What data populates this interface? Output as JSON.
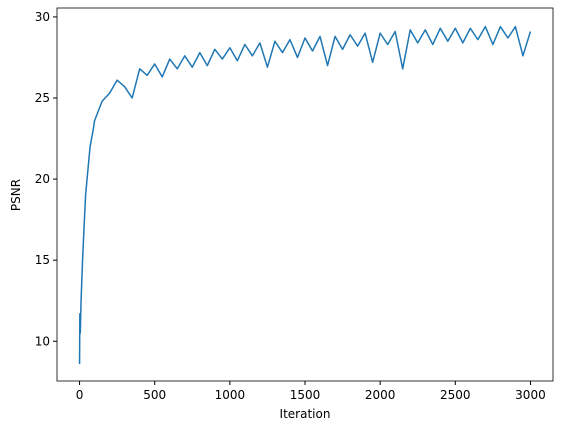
{
  "chart_data": {
    "type": "line",
    "x_label": "Iteration",
    "y_label": "PSNR",
    "color": "#1f77b4",
    "x": [
      0,
      2,
      5,
      10,
      20,
      30,
      40,
      50,
      60,
      70,
      80,
      90,
      100,
      150,
      200,
      250,
      300,
      350,
      400,
      450,
      500,
      550,
      600,
      650,
      700,
      750,
      800,
      850,
      900,
      950,
      1000,
      1050,
      1100,
      1150,
      1200,
      1250,
      1300,
      1350,
      1400,
      1450,
      1500,
      1550,
      1600,
      1650,
      1700,
      1750,
      1800,
      1850,
      1900,
      1950,
      2000,
      2050,
      2100,
      2150,
      2200,
      2250,
      2300,
      2350,
      2400,
      2450,
      2500,
      2550,
      2600,
      2650,
      2700,
      2750,
      2800,
      2850,
      2900,
      2950,
      3000
    ],
    "values": [
      8.6,
      11.7,
      10.5,
      12.5,
      15.0,
      17.0,
      19.0,
      20.0,
      21.0,
      22.0,
      22.5,
      23.0,
      23.6,
      24.8,
      25.3,
      26.1,
      25.7,
      25.0,
      26.8,
      26.4,
      27.1,
      26.3,
      27.4,
      26.8,
      27.6,
      26.9,
      27.8,
      27.0,
      28.0,
      27.4,
      28.1,
      27.3,
      28.3,
      27.6,
      28.4,
      26.9,
      28.5,
      27.8,
      28.6,
      27.5,
      28.7,
      27.9,
      28.8,
      27.0,
      28.8,
      28.0,
      28.9,
      28.2,
      29.0,
      27.2,
      29.0,
      28.3,
      29.1,
      26.8,
      29.2,
      28.4,
      29.2,
      28.3,
      29.3,
      28.5,
      29.3,
      28.4,
      29.3,
      28.6,
      29.4,
      28.3,
      29.4,
      28.7,
      29.4,
      27.6,
      29.1
    ],
    "xlim": [
      -150,
      3150
    ],
    "xticks": [
      0,
      500,
      1000,
      1500,
      2000,
      2500,
      3000
    ],
    "ylim": [
      7.55,
      30.55
    ],
    "yticks": [
      10,
      15,
      20,
      25,
      30
    ]
  }
}
